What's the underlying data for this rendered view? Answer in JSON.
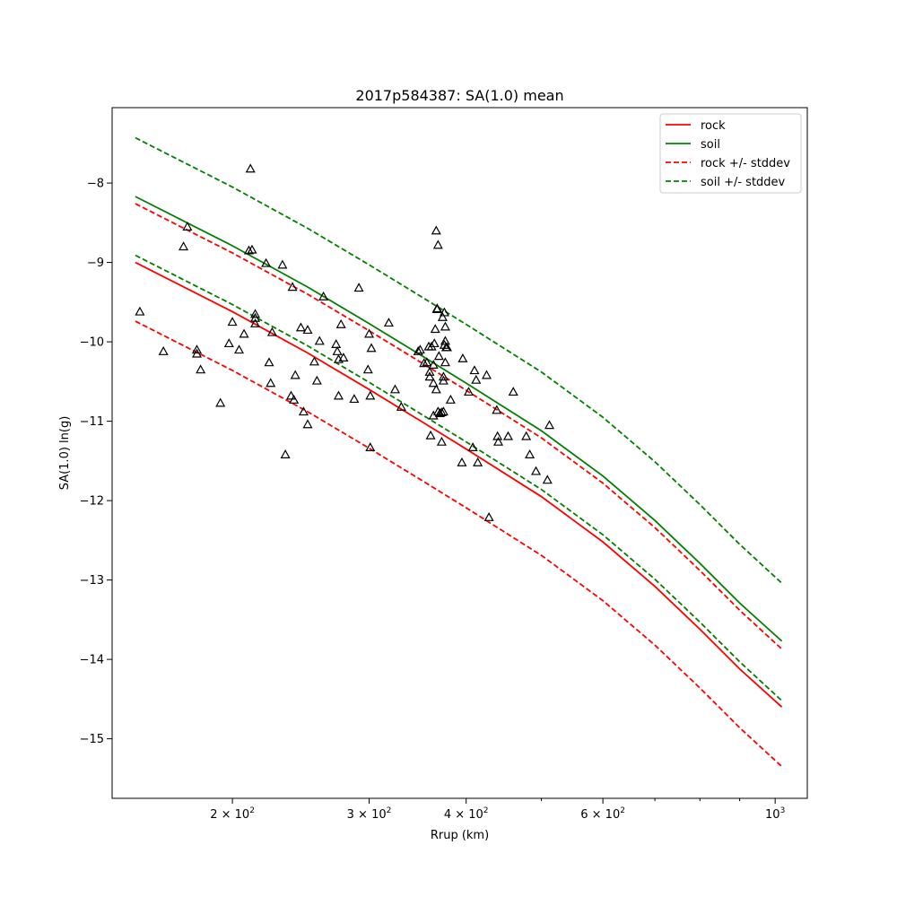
{
  "chart_data": {
    "type": "scatter",
    "title": "2017p584387: SA(1.0) mean",
    "xlabel": "Rrup (km)",
    "ylabel": "SA(1.0) ln(g)",
    "xscale": "log",
    "xlim": [
      140,
      1100
    ],
    "ylim": [
      -15.75,
      -7.05
    ],
    "x_ticks": [
      {
        "value": 200,
        "label": "2 × 10",
        "exp": "2"
      },
      {
        "value": 300,
        "label": "3 × 10",
        "exp": "2"
      },
      {
        "value": 400,
        "label": "4 × 10",
        "exp": "2"
      },
      {
        "value": 600,
        "label": "6 × 10",
        "exp": "2"
      },
      {
        "value": 1000,
        "label": "10",
        "exp": "3"
      }
    ],
    "x_minor_ticks": [
      500,
      700,
      800,
      900
    ],
    "y_ticks": [
      -8,
      -9,
      -10,
      -11,
      -12,
      -13,
      -14,
      -15
    ],
    "y_tick_labels": [
      "−8",
      "−9",
      "−10",
      "−11",
      "−12",
      "−13",
      "−14",
      "−15"
    ],
    "grid": false,
    "legend_position": "top-right",
    "series": [
      {
        "name": "rock",
        "color": "#ff0000",
        "style": "solid",
        "x": [
          150,
          200,
          250,
          300,
          350,
          400,
          500,
          600,
          700,
          800,
          900,
          1020
        ],
        "y": [
          -9.0,
          -9.62,
          -10.14,
          -10.6,
          -11.0,
          -11.35,
          -11.95,
          -12.52,
          -13.08,
          -13.62,
          -14.12,
          -14.6
        ]
      },
      {
        "name": "soil",
        "color": "#008000",
        "style": "solid",
        "x": [
          150,
          200,
          250,
          300,
          350,
          400,
          500,
          600,
          700,
          800,
          900,
          1020
        ],
        "y": [
          -8.17,
          -8.79,
          -9.31,
          -9.77,
          -10.17,
          -10.52,
          -11.12,
          -11.69,
          -12.25,
          -12.79,
          -13.29,
          -13.77
        ]
      },
      {
        "name": "rock +/- stddev",
        "color": "#ff0000",
        "style": "dashed",
        "x": [
          150,
          200,
          250,
          300,
          350,
          400,
          500,
          600,
          700,
          800,
          900,
          1020
        ],
        "y": [
          -8.26,
          -8.88,
          -9.4,
          -9.86,
          -10.26,
          -10.61,
          -11.21,
          -11.78,
          -12.34,
          -12.88,
          -13.38,
          -13.87
        ]
      },
      {
        "name": "",
        "color": "#ff0000",
        "style": "dashed",
        "x": [
          150,
          200,
          250,
          300,
          350,
          400,
          500,
          600,
          700,
          800,
          900,
          1020
        ],
        "y": [
          -9.74,
          -10.36,
          -10.88,
          -11.34,
          -11.74,
          -12.09,
          -12.69,
          -13.26,
          -13.82,
          -14.36,
          -14.86,
          -15.35
        ]
      },
      {
        "name": "soil +/- stddev",
        "color": "#008000",
        "style": "dashed",
        "x": [
          150,
          200,
          250,
          300,
          350,
          400,
          500,
          600,
          700,
          800,
          900,
          1020
        ],
        "y": [
          -7.43,
          -8.05,
          -8.57,
          -9.03,
          -9.43,
          -9.78,
          -10.38,
          -10.95,
          -11.51,
          -12.05,
          -12.55,
          -13.04
        ]
      },
      {
        "name": "",
        "color": "#008000",
        "style": "dashed",
        "x": [
          150,
          200,
          250,
          300,
          350,
          400,
          500,
          600,
          700,
          800,
          900,
          1020
        ],
        "y": [
          -8.91,
          -9.53,
          -10.05,
          -10.51,
          -10.91,
          -11.26,
          -11.86,
          -12.43,
          -12.99,
          -13.53,
          -14.03,
          -14.52
        ]
      }
    ],
    "legend": [
      {
        "label": "rock",
        "color": "#ff0000",
        "style": "solid"
      },
      {
        "label": "soil",
        "color": "#008000",
        "style": "solid"
      },
      {
        "label": "rock +/- stddev",
        "color": "#ff0000",
        "style": "dashed"
      },
      {
        "label": "soil +/- stddev",
        "color": "#008000",
        "style": "dashed"
      }
    ],
    "observations": {
      "marker": "triangle",
      "color": "#000000",
      "points": [
        [
          152,
          -9.62
        ],
        [
          163,
          -10.12
        ],
        [
          173,
          -8.8
        ],
        [
          175,
          -8.55
        ],
        [
          180,
          -10.1
        ],
        [
          180,
          -10.15
        ],
        [
          182,
          -10.35
        ],
        [
          193,
          -10.77
        ],
        [
          198,
          -10.02
        ],
        [
          200,
          -9.75
        ],
        [
          204,
          -10.1
        ],
        [
          207,
          -9.9
        ],
        [
          210,
          -8.85
        ],
        [
          211,
          -7.82
        ],
        [
          212,
          -8.84
        ],
        [
          214,
          -9.7
        ],
        [
          214,
          -9.77
        ],
        [
          214,
          -9.65
        ],
        [
          221,
          -9.01
        ],
        [
          223,
          -10.26
        ],
        [
          224,
          -10.52
        ],
        [
          225,
          -9.88
        ],
        [
          232,
          -9.03
        ],
        [
          234,
          -11.42
        ],
        [
          238,
          -10.68
        ],
        [
          239,
          -9.31
        ],
        [
          240,
          -10.73
        ],
        [
          241,
          -10.42
        ],
        [
          245,
          -9.82
        ],
        [
          247,
          -10.88
        ],
        [
          250,
          -9.85
        ],
        [
          250,
          -11.04
        ],
        [
          255,
          -10.25
        ],
        [
          257,
          -10.49
        ],
        [
          259,
          -9.99
        ],
        [
          262,
          -9.43
        ],
        [
          272,
          -10.03
        ],
        [
          273,
          -10.12
        ],
        [
          274,
          -10.68
        ],
        [
          274,
          -10.22
        ],
        [
          276,
          -9.78
        ],
        [
          278,
          -10.2
        ],
        [
          287,
          -10.72
        ],
        [
          291,
          -9.32
        ],
        [
          299,
          -10.35
        ],
        [
          300,
          -9.9
        ],
        [
          301,
          -10.68
        ],
        [
          301,
          -11.33
        ],
        [
          302,
          -10.08
        ],
        [
          318,
          -9.76
        ],
        [
          324,
          -10.6
        ],
        [
          330,
          -10.82
        ],
        [
          347,
          -10.12
        ],
        [
          349,
          -10.1
        ],
        [
          353,
          -10.27
        ],
        [
          356,
          -10.26
        ],
        [
          358,
          -10.06
        ],
        [
          359,
          -10.44
        ],
        [
          359,
          -10.38
        ],
        [
          360,
          -11.18
        ],
        [
          361,
          -10.06
        ],
        [
          363,
          -10.93
        ],
        [
          363,
          -10.52
        ],
        [
          363,
          -10.29
        ],
        [
          364,
          -10.02
        ],
        [
          365,
          -9.84
        ],
        [
          366,
          -10.6
        ],
        [
          366,
          -8.6
        ],
        [
          367,
          -9.58
        ],
        [
          367,
          -9.59
        ],
        [
          368,
          -8.78
        ],
        [
          368,
          -10.88
        ],
        [
          369,
          -10.18
        ],
        [
          370,
          -10.9
        ],
        [
          372,
          -10.89
        ],
        [
          372,
          -11.26
        ],
        [
          373,
          -9.69
        ],
        [
          374,
          -10.44
        ],
        [
          374,
          -10.49
        ],
        [
          374,
          -10.88
        ],
        [
          375,
          -9.63
        ],
        [
          375,
          -10.04
        ],
        [
          376,
          -9.99
        ],
        [
          376,
          -9.81
        ],
        [
          376,
          -10.26
        ],
        [
          377,
          -10.07
        ],
        [
          378,
          -10.07
        ],
        [
          382,
          -10.73
        ],
        [
          395,
          -11.52
        ],
        [
          396,
          -10.21
        ],
        [
          403,
          -10.63
        ],
        [
          408,
          -11.33
        ],
        [
          410,
          -10.36
        ],
        [
          412,
          -10.48
        ],
        [
          414,
          -11.52
        ],
        [
          425,
          -10.42
        ],
        [
          428,
          -12.21
        ],
        [
          438,
          -10.86
        ],
        [
          439,
          -11.19
        ],
        [
          440,
          -11.26
        ],
        [
          453,
          -11.19
        ],
        [
          460,
          -10.63
        ],
        [
          478,
          -11.19
        ],
        [
          483,
          -11.42
        ],
        [
          492,
          -11.63
        ],
        [
          509,
          -11.74
        ],
        [
          512,
          -11.05
        ]
      ]
    }
  }
}
